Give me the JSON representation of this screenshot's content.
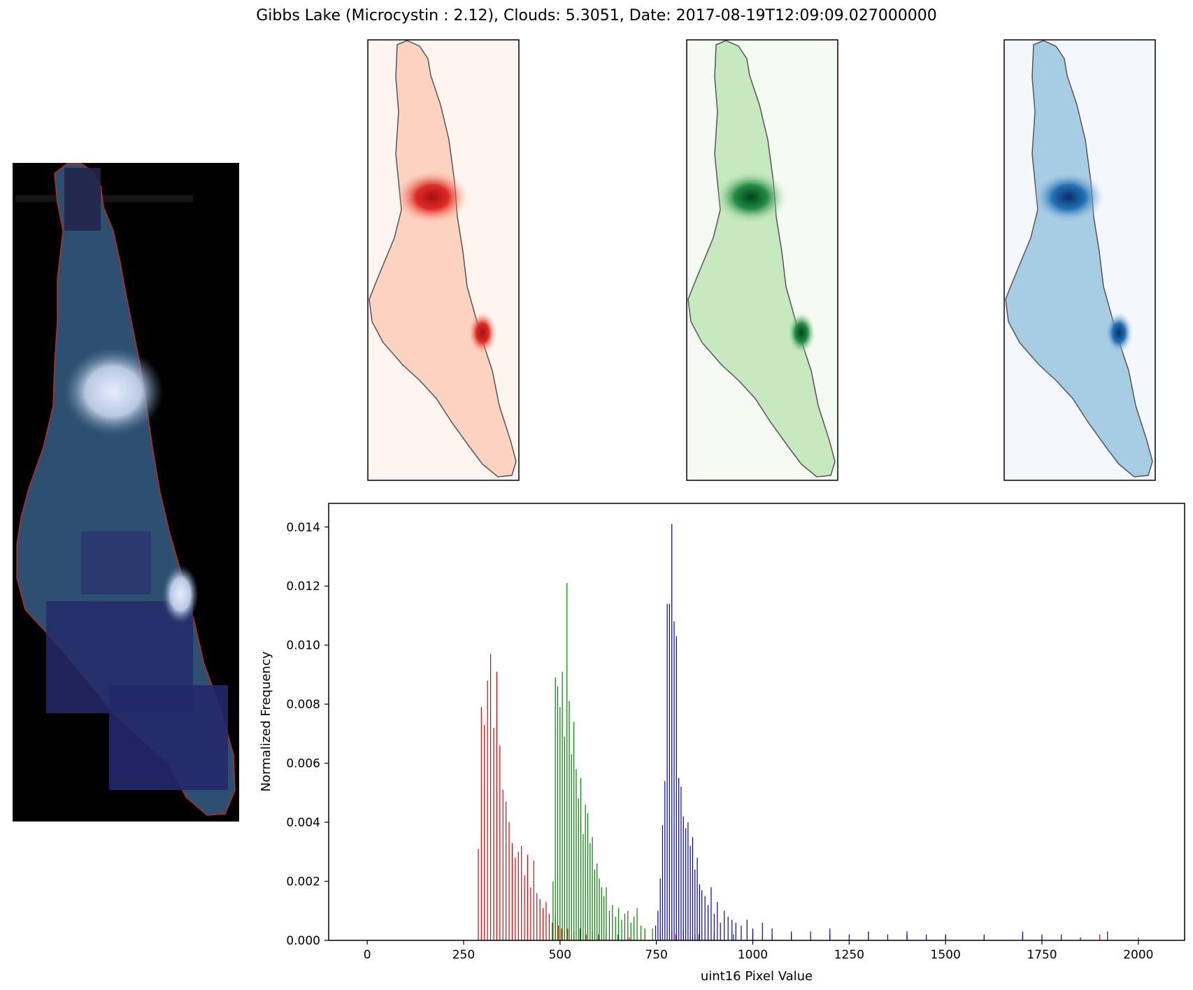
{
  "title": "Gibbs Lake (Microcystin : 2.12), Clouds: 5.3051, Date: 2017-08-19T12:09:09.027000000",
  "colors": {
    "red_band": "#e00000",
    "green_band": "#008000",
    "blue_band": "#0000d0",
    "rgb_background": "#000000",
    "rgb_water": "#2a4a6b",
    "outline": "#c0282a",
    "reds_light": "#fff5f0",
    "greens_light": "#f5fbf2",
    "blues_light": "#f4f8fd"
  },
  "panels": [
    {
      "name": "rgb-composite",
      "kind": "image"
    },
    {
      "name": "red-band-map",
      "kind": "image",
      "colormap": "Reds"
    },
    {
      "name": "green-band-map",
      "kind": "image",
      "colormap": "Greens"
    },
    {
      "name": "blue-band-map",
      "kind": "image",
      "colormap": "Blues"
    }
  ],
  "chart_data": {
    "type": "bar",
    "xlabel": "uint16 Pixel Value",
    "ylabel": "Normalized Frequency",
    "xlim": [
      -100,
      2120
    ],
    "ylim": [
      0,
      0.0148
    ],
    "xticks": [
      0,
      250,
      500,
      750,
      1000,
      1250,
      1500,
      1750,
      2000
    ],
    "xtick_labels": [
      "0",
      "250",
      "500",
      "750",
      "1000",
      "1250",
      "1500",
      "1750",
      "2000"
    ],
    "yticks": [
      0,
      0.002,
      0.004,
      0.006,
      0.008,
      0.01,
      0.012,
      0.014
    ],
    "ytick_labels": [
      "0.000",
      "0.002",
      "0.004",
      "0.006",
      "0.008",
      "0.010",
      "0.012",
      "0.014"
    ],
    "grid": false,
    "series": [
      {
        "color": "red",
        "x": [
          288,
          296,
          304,
          312,
          320,
          328,
          336,
          344,
          352,
          360,
          368,
          376,
          384,
          392,
          400,
          408,
          416,
          424,
          432,
          440,
          448,
          456,
          464,
          472,
          480,
          488,
          496,
          504,
          512,
          520,
          536,
          552,
          568,
          584,
          600,
          620,
          650,
          680,
          720,
          760,
          800,
          850,
          900,
          950,
          1000,
          1100,
          1200,
          1300,
          1400,
          1500,
          1600,
          1700,
          1800,
          1900,
          2000
        ],
        "values": [
          0.0031,
          0.0079,
          0.0073,
          0.0088,
          0.0097,
          0.0072,
          0.0091,
          0.0066,
          0.0051,
          0.0047,
          0.004,
          0.0033,
          0.0028,
          0.003,
          0.0032,
          0.0022,
          0.0029,
          0.0018,
          0.0027,
          0.0016,
          0.0014,
          0.0011,
          0.0013,
          0.0009,
          0.0006,
          0.0008,
          0.0005,
          0.0004,
          0.0003,
          0.0004,
          0.0003,
          0.0004,
          0.0002,
          0.0003,
          0.0002,
          0.0002,
          0.0002,
          0.0001,
          0.0002,
          0.0001,
          0.0002,
          0.0002,
          0.0001,
          0.0002,
          0.0001,
          0.0002,
          0.0002,
          0.0003,
          0.0002,
          0.0002,
          0.0001,
          0.0002,
          0.0001,
          0.0002,
          0.0001
        ]
      },
      {
        "color": "green",
        "x": [
          482,
          488,
          494,
          500,
          506,
          512,
          518,
          524,
          530,
          536,
          542,
          548,
          554,
          560,
          566,
          572,
          578,
          584,
          590,
          596,
          602,
          608,
          614,
          620,
          628,
          636,
          644,
          652,
          660,
          668,
          676,
          684,
          692,
          700,
          710,
          720,
          740,
          760,
          790,
          820,
          860,
          900,
          950,
          1000,
          1050,
          1100,
          1200,
          1300,
          1400,
          1500,
          1600,
          1700
        ],
        "values": [
          0.002,
          0.0089,
          0.0086,
          0.0079,
          0.0091,
          0.0069,
          0.0121,
          0.0081,
          0.0063,
          0.0074,
          0.0058,
          0.0048,
          0.0055,
          0.0036,
          0.0046,
          0.0043,
          0.0033,
          0.0035,
          0.0024,
          0.0026,
          0.0021,
          0.0018,
          0.0015,
          0.0018,
          0.001,
          0.0012,
          0.0008,
          0.0011,
          0.0007,
          0.0009,
          0.001,
          0.0006,
          0.0008,
          0.0011,
          0.0005,
          0.0004,
          0.0004,
          0.0003,
          0.0003,
          0.0003,
          0.0002,
          0.0003,
          0.0002,
          0.0003,
          0.0002,
          0.0002,
          0.0002,
          0.0001,
          0.0002,
          0.0002,
          0.0001,
          0.0002
        ]
      },
      {
        "color": "blue",
        "x": [
          748,
          754,
          760,
          766,
          772,
          778,
          784,
          790,
          796,
          802,
          808,
          814,
          820,
          826,
          832,
          838,
          844,
          850,
          856,
          862,
          868,
          876,
          884,
          892,
          900,
          908,
          916,
          926,
          936,
          946,
          956,
          970,
          985,
          1000,
          1025,
          1050,
          1100,
          1150,
          1200,
          1250,
          1300,
          1350,
          1400,
          1450,
          1500,
          1600,
          1700,
          1750,
          1800,
          1850,
          1920
        ],
        "values": [
          0.0005,
          0.001,
          0.0021,
          0.0039,
          0.0054,
          0.0114,
          0.0114,
          0.0141,
          0.0108,
          0.0103,
          0.0055,
          0.0052,
          0.0042,
          0.0038,
          0.004,
          0.0032,
          0.0035,
          0.0024,
          0.0028,
          0.0019,
          0.0017,
          0.0015,
          0.0012,
          0.0018,
          0.0009,
          0.0013,
          0.0006,
          0.001,
          0.0008,
          0.0007,
          0.0006,
          0.0005,
          0.0007,
          0.0004,
          0.0006,
          0.0004,
          0.0003,
          0.0003,
          0.0004,
          0.0002,
          0.0003,
          0.0002,
          0.0003,
          0.0002,
          0.0002,
          0.0002,
          0.0003,
          0.0002,
          0.0002,
          0.0001,
          0.0003
        ]
      }
    ]
  }
}
